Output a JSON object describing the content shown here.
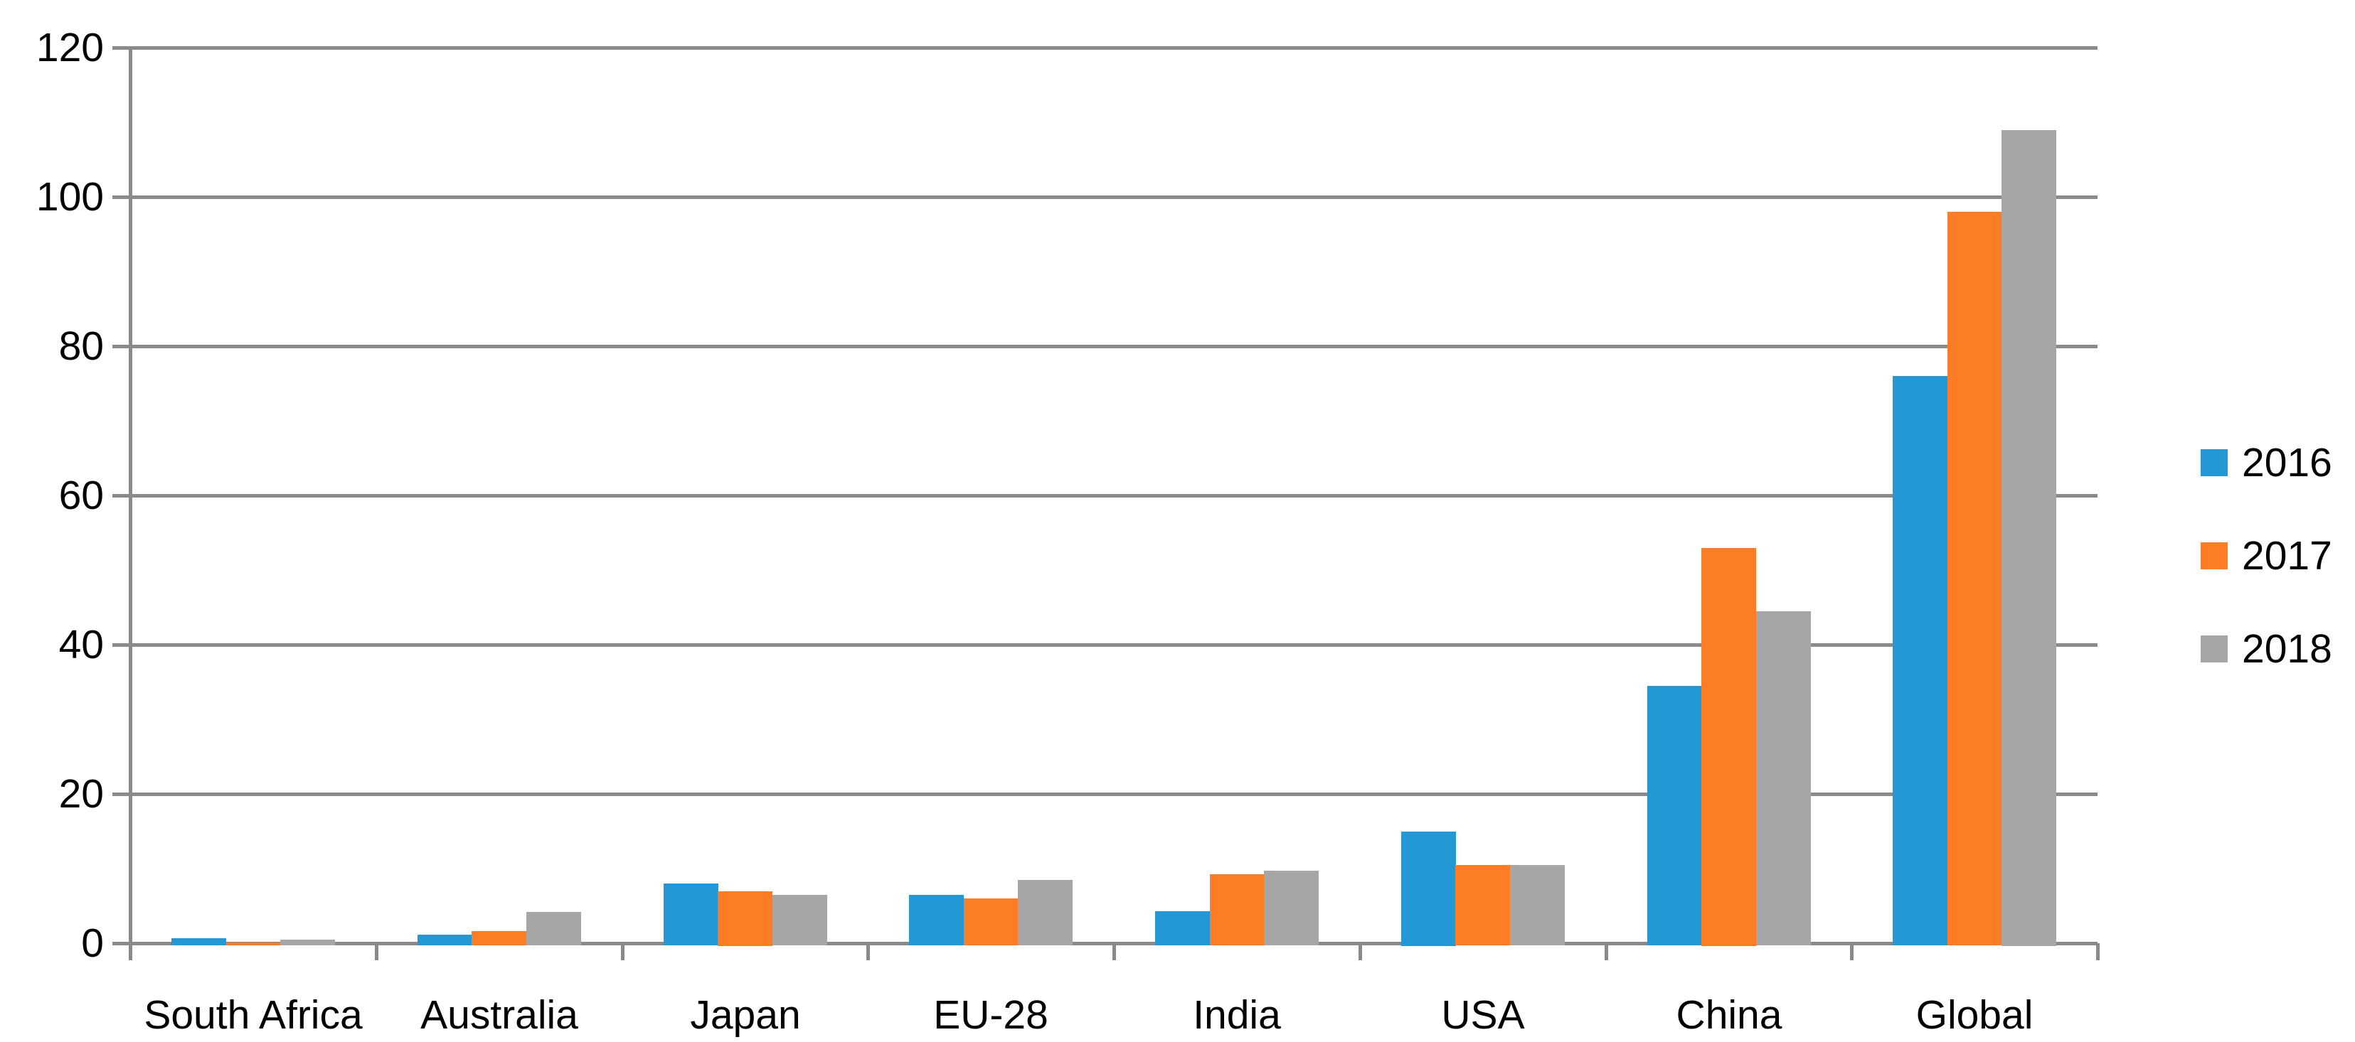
{
  "chart_data": {
    "type": "bar",
    "title": "",
    "categories": [
      "South Africa",
      "Australia",
      "Japan",
      "EU-28",
      "India",
      "USA",
      "China",
      "Global"
    ],
    "series": [
      {
        "name": "2016",
        "color": "#2498D5",
        "values": [
          0.7,
          1.1,
          8.0,
          6.5,
          4.3,
          15.0,
          34.5,
          76.0
        ]
      },
      {
        "name": "2017",
        "color": "#FC7D26",
        "values": [
          0.1,
          1.6,
          7.0,
          6.0,
          9.2,
          10.5,
          53.0,
          98.0
        ]
      },
      {
        "name": "2018",
        "color": "#A6A6A6",
        "values": [
          0.5,
          4.2,
          6.5,
          8.5,
          9.7,
          10.5,
          44.5,
          109.0
        ]
      }
    ],
    "xlabel": "",
    "ylabel": "",
    "ylim": [
      0,
      120
    ],
    "ytick_step": 20,
    "ytick_labels": [
      "0",
      "20",
      "40",
      "60",
      "80",
      "100",
      "120"
    ],
    "grid": true,
    "legend_position": "right",
    "colors": {
      "axis": "#8A8A8A",
      "text": "#000000",
      "background": "#FFFFFF"
    }
  }
}
